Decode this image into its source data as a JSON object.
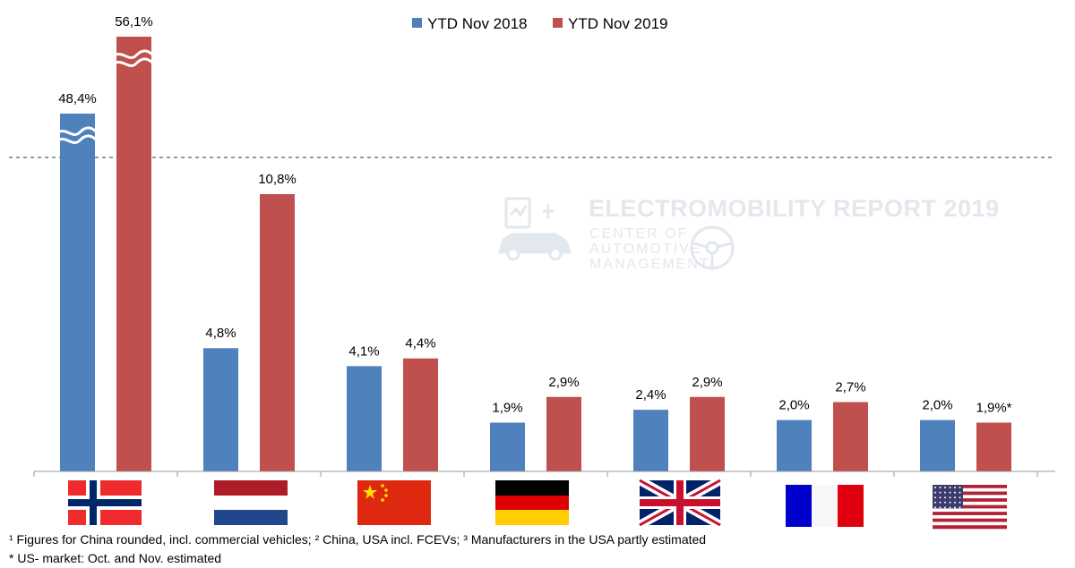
{
  "chart_data": {
    "type": "bar",
    "categories": [
      "Norway",
      "Netherlands",
      "China",
      "Germany",
      "United Kingdom",
      "France",
      "USA"
    ],
    "series": [
      {
        "name": "YTD Nov 2018",
        "color": "#4f81bd",
        "values": [
          48.4,
          4.8,
          4.1,
          1.9,
          2.4,
          2.0,
          2.0
        ],
        "labels": [
          "48,4%",
          "4,8%",
          "4,1%",
          "1,9%",
          "2,4%",
          "2,0%",
          "2,0%"
        ]
      },
      {
        "name": "YTD Nov 2019",
        "color": "#c0504d",
        "values": [
          56.1,
          10.8,
          4.4,
          2.9,
          2.9,
          2.7,
          1.9
        ],
        "labels": [
          "56,1%",
          "10,8%",
          "4,4%",
          "2,9%",
          "2,9%",
          "2,7%",
          "1,9%*"
        ]
      }
    ],
    "axis_break": true,
    "legend_position": "top-center",
    "grid": false
  },
  "flags": [
    "norway-flag",
    "netherlands-flag",
    "china-flag",
    "germany-flag",
    "uk-flag",
    "france-flag",
    "usa-flag"
  ],
  "watermark": {
    "title": "ELECTROMOBILITY REPORT 2019",
    "line1": "CENTER OF",
    "line2": "AUTOMOTIVE",
    "line3": "MANAGEMENT"
  },
  "footnotes": {
    "line1": "¹ Figures for China rounded, incl. commercial vehicles; ² China, USA incl. FCEVs; ³ Manufacturers in the USA partly estimated",
    "line2": "* US- market: Oct. and Nov. estimated"
  }
}
